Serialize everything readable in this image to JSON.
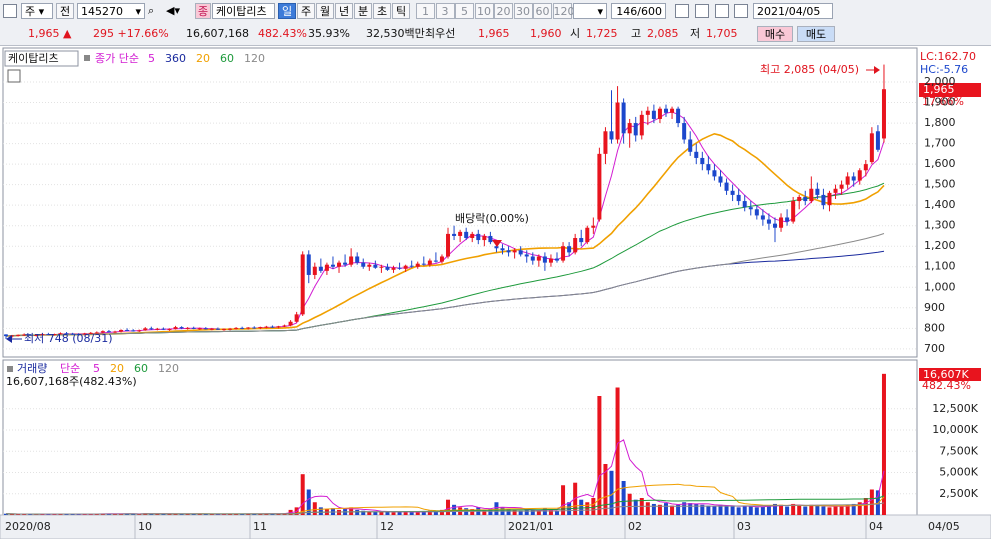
{
  "toolbar": {
    "market": "주",
    "prev": "전",
    "code": "145270",
    "tag": "종",
    "name": "케이탑리츠",
    "periods": [
      "일",
      "주",
      "월",
      "년",
      "분",
      "초",
      "틱"
    ],
    "intervals": [
      "1",
      "3",
      "5",
      "10",
      "20",
      "30",
      "60",
      "120"
    ],
    "count": "146/600",
    "date": "2021/04/05"
  },
  "quote": {
    "price": "1,965",
    "sign": "▲",
    "change": "295",
    "change_pct": "+17.66%",
    "volume": "16,607,168",
    "volume_ratio": "482.43%",
    "turnover": "35.93%",
    "amount": "32,530백만",
    "best_label": "최우선",
    "ask": "1,965",
    "bid": "1,960",
    "open_label": "시",
    "open": "1,725",
    "high_label": "고",
    "high": "2,085",
    "low_label": "저",
    "low": "1,705",
    "buy": "매수",
    "sell": "매도"
  },
  "price_chart": {
    "name": "케이탑리츠",
    "ma_label": "종가 단순",
    "moving_averages": [
      {
        "period": 5,
        "color": "#d21cd2"
      },
      {
        "period": 360,
        "color": "#1a2a9e"
      },
      {
        "period": 20,
        "color": "#f0a000"
      },
      {
        "period": 60,
        "color": "#1e9a3c"
      },
      {
        "period": 120,
        "color": "#8a8a8a"
      }
    ],
    "lc": "LC:162.70",
    "hc": "HC:-5.76",
    "last_price": "1,965",
    "last_pct": "17.66%",
    "high_note": "최고 2,085 (04/05)",
    "low_note": "최저 748 (08/31)",
    "dividend_note": "배당락(0.00%)",
    "up_color": "#e8141e",
    "down_color": "#1c47cc",
    "ylim": [
      670,
      2156
    ],
    "yticks": [
      700,
      800,
      900,
      {
        "value": 1000,
        "label": "1,000"
      },
      {
        "value": 1100,
        "label": "1,100"
      },
      {
        "value": 1200,
        "label": "1,200"
      },
      {
        "value": 1300,
        "label": "1,300"
      },
      {
        "value": 1400,
        "label": "1,400"
      },
      {
        "value": 1500,
        "label": "1,500"
      },
      {
        "value": 1600,
        "label": "1,600"
      },
      {
        "value": 1700,
        "label": "1,700"
      },
      {
        "value": 1800,
        "label": "1,800"
      },
      {
        "value": 1900,
        "label": "1,900"
      },
      {
        "value": 2000,
        "label": "2,000"
      }
    ],
    "candles": [
      [
        770,
        772,
        748,
        762
      ],
      [
        762,
        768,
        755,
        765
      ],
      [
        765,
        770,
        760,
        768
      ],
      [
        768,
        775,
        763,
        770
      ],
      [
        770,
        772,
        764,
        766
      ],
      [
        766,
        770,
        760,
        768
      ],
      [
        768,
        776,
        765,
        772
      ],
      [
        772,
        778,
        768,
        770
      ],
      [
        770,
        774,
        765,
        772
      ],
      [
        772,
        780,
        770,
        776
      ],
      [
        776,
        782,
        772,
        774
      ],
      [
        774,
        778,
        768,
        772
      ],
      [
        772,
        776,
        766,
        770
      ],
      [
        770,
        778,
        768,
        775
      ],
      [
        775,
        782,
        772,
        778
      ],
      [
        778,
        785,
        774,
        780
      ],
      [
        780,
        790,
        776,
        786
      ],
      [
        786,
        792,
        780,
        782
      ],
      [
        782,
        788,
        776,
        784
      ],
      [
        784,
        795,
        780,
        792
      ],
      [
        792,
        800,
        786,
        790
      ],
      [
        790,
        796,
        784,
        788
      ],
      [
        788,
        794,
        782,
        790
      ],
      [
        790,
        806,
        788,
        800
      ],
      [
        800,
        808,
        792,
        796
      ],
      [
        796,
        802,
        790,
        798
      ],
      [
        798,
        804,
        792,
        794
      ],
      [
        794,
        800,
        788,
        796
      ],
      [
        796,
        812,
        794,
        806
      ],
      [
        806,
        810,
        796,
        800
      ],
      [
        800,
        806,
        794,
        802
      ],
      [
        802,
        808,
        796,
        798
      ],
      [
        798,
        804,
        792,
        800
      ],
      [
        800,
        806,
        794,
        796
      ],
      [
        796,
        802,
        790,
        798
      ],
      [
        798,
        804,
        792,
        794
      ],
      [
        794,
        800,
        788,
        796
      ],
      [
        796,
        802,
        790,
        798
      ],
      [
        798,
        806,
        794,
        802
      ],
      [
        802,
        808,
        796,
        800
      ],
      [
        800,
        806,
        794,
        804
      ],
      [
        804,
        810,
        798,
        802
      ],
      [
        802,
        808,
        796,
        806
      ],
      [
        806,
        812,
        800,
        808
      ],
      [
        808,
        814,
        802,
        806
      ],
      [
        806,
        812,
        800,
        810
      ],
      [
        810,
        818,
        806,
        814
      ],
      [
        814,
        840,
        810,
        832
      ],
      [
        832,
        880,
        828,
        868
      ],
      [
        868,
        1175,
        860,
        1160
      ],
      [
        1160,
        1180,
        1020,
        1060
      ],
      [
        1060,
        1120,
        1040,
        1100
      ],
      [
        1100,
        1140,
        1070,
        1080
      ],
      [
        1080,
        1120,
        1060,
        1110
      ],
      [
        1110,
        1150,
        1090,
        1100
      ],
      [
        1100,
        1130,
        1070,
        1120
      ],
      [
        1120,
        1160,
        1100,
        1110
      ],
      [
        1110,
        1190,
        1100,
        1150
      ],
      [
        1150,
        1170,
        1110,
        1120
      ],
      [
        1120,
        1140,
        1090,
        1100
      ],
      [
        1100,
        1120,
        1080,
        1110
      ],
      [
        1110,
        1130,
        1090,
        1095
      ],
      [
        1095,
        1110,
        1070,
        1100
      ],
      [
        1100,
        1115,
        1080,
        1085
      ],
      [
        1085,
        1105,
        1070,
        1095
      ],
      [
        1095,
        1120,
        1085,
        1090
      ],
      [
        1090,
        1110,
        1075,
        1105
      ],
      [
        1105,
        1130,
        1095,
        1100
      ],
      [
        1100,
        1125,
        1090,
        1115
      ],
      [
        1115,
        1150,
        1105,
        1110
      ],
      [
        1110,
        1140,
        1100,
        1130
      ],
      [
        1130,
        1170,
        1120,
        1125
      ],
      [
        1125,
        1160,
        1115,
        1150
      ],
      [
        1150,
        1290,
        1140,
        1260
      ],
      [
        1260,
        1300,
        1230,
        1250
      ],
      [
        1250,
        1280,
        1220,
        1270
      ],
      [
        1270,
        1290,
        1230,
        1240
      ],
      [
        1240,
        1270,
        1220,
        1260
      ],
      [
        1260,
        1280,
        1210,
        1230
      ],
      [
        1230,
        1260,
        1200,
        1250
      ],
      [
        1250,
        1270,
        1210,
        1220
      ],
      [
        1200,
        1220,
        1170,
        1190
      ],
      [
        1190,
        1210,
        1160,
        1180
      ],
      [
        1180,
        1200,
        1150,
        1170
      ],
      [
        1170,
        1190,
        1140,
        1180
      ],
      [
        1180,
        1200,
        1150,
        1160
      ],
      [
        1160,
        1180,
        1120,
        1150
      ],
      [
        1150,
        1170,
        1110,
        1130
      ],
      [
        1130,
        1160,
        1100,
        1150
      ],
      [
        1150,
        1170,
        1080,
        1120
      ],
      [
        1120,
        1160,
        1100,
        1140
      ],
      [
        1140,
        1170,
        1120,
        1130
      ],
      [
        1130,
        1220,
        1120,
        1200
      ],
      [
        1200,
        1220,
        1150,
        1170
      ],
      [
        1170,
        1260,
        1160,
        1240
      ],
      [
        1240,
        1280,
        1200,
        1220
      ],
      [
        1220,
        1300,
        1210,
        1290
      ],
      [
        1290,
        1340,
        1260,
        1300
      ],
      [
        1330,
        1680,
        1320,
        1650
      ],
      [
        1650,
        1780,
        1600,
        1760
      ],
      [
        1760,
        1960,
        1700,
        1720
      ],
      [
        1720,
        1980,
        1700,
        1900
      ],
      [
        1900,
        1920,
        1700,
        1750
      ],
      [
        1750,
        1820,
        1680,
        1800
      ],
      [
        1800,
        1830,
        1710,
        1740
      ],
      [
        1740,
        1860,
        1720,
        1840
      ],
      [
        1840,
        1880,
        1790,
        1860
      ],
      [
        1860,
        1890,
        1800,
        1820
      ],
      [
        1820,
        1880,
        1800,
        1870
      ],
      [
        1870,
        1890,
        1830,
        1850
      ],
      [
        1850,
        1880,
        1820,
        1870
      ],
      [
        1870,
        1880,
        1780,
        1800
      ],
      [
        1800,
        1830,
        1700,
        1720
      ],
      [
        1720,
        1760,
        1640,
        1660
      ],
      [
        1660,
        1700,
        1600,
        1630
      ],
      [
        1630,
        1660,
        1570,
        1600
      ],
      [
        1600,
        1640,
        1550,
        1570
      ],
      [
        1570,
        1600,
        1520,
        1540
      ],
      [
        1540,
        1570,
        1490,
        1510
      ],
      [
        1510,
        1530,
        1450,
        1470
      ],
      [
        1470,
        1500,
        1420,
        1450
      ],
      [
        1450,
        1480,
        1400,
        1420
      ],
      [
        1420,
        1450,
        1370,
        1390
      ],
      [
        1390,
        1420,
        1350,
        1380
      ],
      [
        1380,
        1400,
        1330,
        1350
      ],
      [
        1350,
        1380,
        1300,
        1330
      ],
      [
        1330,
        1360,
        1280,
        1310
      ],
      [
        1310,
        1340,
        1220,
        1290
      ],
      [
        1290,
        1360,
        1270,
        1340
      ],
      [
        1340,
        1380,
        1300,
        1320
      ],
      [
        1320,
        1440,
        1310,
        1420
      ],
      [
        1420,
        1450,
        1380,
        1440
      ],
      [
        1440,
        1470,
        1400,
        1420
      ],
      [
        1420,
        1540,
        1410,
        1480
      ],
      [
        1480,
        1510,
        1430,
        1450
      ],
      [
        1450,
        1480,
        1380,
        1400
      ],
      [
        1400,
        1470,
        1370,
        1460
      ],
      [
        1460,
        1500,
        1430,
        1480
      ],
      [
        1480,
        1520,
        1450,
        1500
      ],
      [
        1500,
        1560,
        1480,
        1540
      ],
      [
        1540,
        1560,
        1490,
        1520
      ],
      [
        1520,
        1580,
        1500,
        1570
      ],
      [
        1570,
        1620,
        1540,
        1600
      ],
      [
        1610,
        1780,
        1600,
        1750
      ],
      [
        1760,
        1790,
        1660,
        1670
      ],
      [
        1725,
        2085,
        1705,
        1965
      ]
    ]
  },
  "volume_chart": {
    "name": "거래량",
    "ma_label": "단순",
    "moving_averages": [
      {
        "period": 5,
        "color": "#d21cd2"
      },
      {
        "period": 20,
        "color": "#f0a000"
      },
      {
        "period": 60,
        "color": "#1e9a3c"
      },
      {
        "period": 120,
        "color": "#8a8a8a"
      }
    ],
    "summary": "16,607,168주(482.43%)",
    "last_volume": "16,607K",
    "last_pct": "482.43%",
    "ylim": [
      0,
      18000
    ],
    "yticks": [
      {
        "value": 2500,
        "label": "2,500K"
      },
      {
        "value": 5000,
        "label": "5,000K"
      },
      {
        "value": 7500,
        "label": "7,500K"
      },
      {
        "value": 10000,
        "label": "10,000K"
      },
      {
        "value": 12500,
        "label": "12,500K"
      }
    ],
    "values": [
      150,
      120,
      100,
      110,
      90,
      100,
      130,
      110,
      100,
      140,
      120,
      100,
      90,
      110,
      130,
      150,
      180,
      140,
      130,
      160,
      150,
      120,
      110,
      200,
      150,
      120,
      110,
      100,
      180,
      140,
      120,
      110,
      100,
      120,
      110,
      100,
      110,
      120,
      140,
      120,
      130,
      120,
      150,
      160,
      140,
      170,
      200,
      600,
      900,
      4800,
      3000,
      1500,
      900,
      700,
      800,
      600,
      700,
      900,
      600,
      500,
      400,
      400,
      350,
      400,
      300,
      350,
      400,
      300,
      350,
      400,
      500,
      450,
      600,
      1800,
      1200,
      900,
      800,
      700,
      900,
      600,
      700,
      1500,
      900,
      700,
      600,
      500,
      700,
      600,
      500,
      800,
      600,
      500,
      3500,
      1500,
      3800,
      1800,
      1500,
      2000,
      14000,
      6000,
      5200,
      15000,
      4000,
      2500,
      1800,
      2000,
      1500,
      1300,
      1200,
      1400,
      1100,
      1200,
      1500,
      1400,
      1300,
      1200,
      1100,
      1000,
      1200,
      1100,
      1000,
      900,
      1100,
      1000,
      900,
      1000,
      1100,
      1300,
      1200,
      1000,
      1300,
      1100,
      1000,
      1200,
      1100,
      1000,
      900,
      1000,
      1100,
      1200,
      1300,
      1500,
      2000,
      3000,
      2900,
      16607
    ]
  },
  "x_axis": {
    "labels": [
      "2020/08",
      "10",
      "11",
      "12",
      "2021/01",
      "02",
      "03",
      "04",
      "04/05"
    ]
  }
}
